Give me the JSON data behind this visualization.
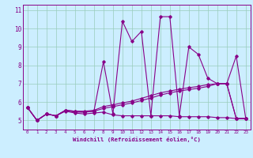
{
  "xlabel": "Windchill (Refroidissement éolien,°C)",
  "background_color": "#cceeff",
  "grid_color": "#99ccbb",
  "line_color": "#880088",
  "xlim_min": -0.5,
  "xlim_max": 23.5,
  "ylim_min": 4.5,
  "ylim_max": 11.3,
  "xtick_labels": [
    "0",
    "1",
    "2",
    "3",
    "4",
    "5",
    "6",
    "7",
    "8",
    "9",
    "10",
    "11",
    "12",
    "13",
    "14",
    "15",
    "16",
    "17",
    "18",
    "19",
    "20",
    "21",
    "22",
    "23"
  ],
  "ytick_values": [
    5,
    6,
    7,
    8,
    9,
    10,
    11
  ],
  "series1": [
    5.7,
    5.0,
    5.35,
    5.25,
    5.55,
    5.5,
    5.45,
    5.5,
    8.2,
    5.35,
    10.4,
    9.3,
    9.85,
    5.25,
    10.65,
    10.65,
    5.25,
    9.0,
    8.6,
    7.3,
    7.0,
    7.0,
    8.5,
    5.1
  ],
  "series2": [
    5.7,
    5.0,
    5.35,
    5.25,
    5.5,
    5.4,
    5.35,
    5.4,
    5.45,
    5.3,
    5.25,
    5.25,
    5.25,
    5.25,
    5.25,
    5.25,
    5.2,
    5.2,
    5.2,
    5.2,
    5.15,
    5.15,
    5.1,
    5.1
  ],
  "series3": [
    5.7,
    5.0,
    5.35,
    5.25,
    5.55,
    5.5,
    5.5,
    5.55,
    5.75,
    5.85,
    5.95,
    6.05,
    6.2,
    6.35,
    6.5,
    6.6,
    6.7,
    6.78,
    6.85,
    6.95,
    7.0,
    7.0,
    5.1,
    5.1
  ],
  "series4": [
    5.7,
    5.0,
    5.35,
    5.25,
    5.55,
    5.45,
    5.45,
    5.5,
    5.65,
    5.75,
    5.85,
    5.95,
    6.08,
    6.22,
    6.38,
    6.5,
    6.6,
    6.68,
    6.75,
    6.85,
    7.0,
    7.0,
    5.1,
    5.1
  ]
}
